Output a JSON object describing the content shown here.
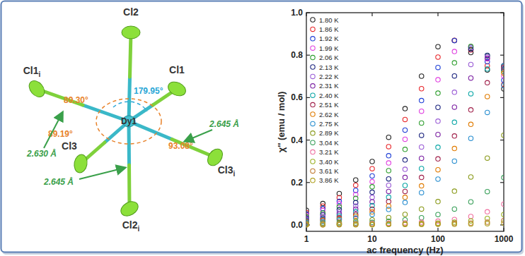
{
  "diagram": {
    "atoms": [
      {
        "label": "Cl2"
      },
      {
        "label": "Cl1"
      },
      {
        "label": "Cl1",
        "suffix": "i"
      },
      {
        "label": "Dy1"
      },
      {
        "label": "Cl3"
      },
      {
        "label": "Cl3",
        "suffix": "i"
      },
      {
        "label": "Cl2",
        "suffix": "i"
      }
    ],
    "angles": [
      "179.95°",
      "89.30°",
      "89.19°",
      "93.08°"
    ],
    "distances": [
      "2.630 Å",
      "2.645 Å",
      "2.645 Å"
    ]
  },
  "chart_data": {
    "type": "scatter",
    "xlabel": "ac frequency (Hz)",
    "ylabel": "χ'' (emu / mol)",
    "log": "x",
    "grid": false,
    "legend": "top-left",
    "marker": "circle",
    "xlim": [
      1,
      1000
    ],
    "xticks": [
      1,
      10,
      100,
      1000
    ],
    "ylim": [
      -0.03,
      1.0
    ],
    "yticks": [
      {
        "value": 0,
        "label": "0.0"
      },
      0.2,
      0.4,
      0.6,
      0.8,
      {
        "value": 1,
        "label": "1.0"
      }
    ],
    "x": [
      1,
      1.78,
      3.16,
      5.62,
      10,
      17.8,
      31.6,
      56.2,
      100,
      178,
      316,
      562,
      1000
    ],
    "series": [
      {
        "name": "1.80 K",
        "color": "#222222",
        "values": [
          0.069,
          0.101,
          0.148,
          0.212,
          0.299,
          0.413,
          0.548,
          0.701,
          0.84,
          0.869,
          0.812,
          0.73,
          0.641
        ]
      },
      {
        "name": "1.86 K",
        "color": "#e8262a",
        "values": [
          0.058,
          0.089,
          0.129,
          0.187,
          0.265,
          0.369,
          0.497,
          0.642,
          0.791,
          0.87,
          0.825,
          0.75,
          0.662
        ]
      },
      {
        "name": "1.92 K",
        "color": "#1f3fd6",
        "values": [
          0.051,
          0.077,
          0.111,
          0.163,
          0.231,
          0.326,
          0.447,
          0.586,
          0.742,
          0.869,
          0.837,
          0.769,
          0.682
        ]
      },
      {
        "name": "1.99 K",
        "color": "#e040e0",
        "values": [
          0.046,
          0.068,
          0.1,
          0.144,
          0.204,
          0.292,
          0.404,
          0.536,
          0.684,
          0.817,
          0.838,
          0.782,
          0.702
        ]
      },
      {
        "name": "2.06 K",
        "color": "#2e9e2e",
        "values": [
          0.039,
          0.056,
          0.086,
          0.125,
          0.18,
          0.256,
          0.356,
          0.48,
          0.621,
          0.764,
          0.841,
          0.797,
          0.724
        ]
      },
      {
        "name": "2.13 K",
        "color": "#1a237e",
        "values": [
          0.032,
          0.048,
          0.072,
          0.105,
          0.154,
          0.217,
          0.306,
          0.422,
          0.554,
          0.702,
          0.828,
          0.799,
          0.735
        ]
      },
      {
        "name": "2.22 K",
        "color": "#9a5cd6",
        "values": [
          0.028,
          0.041,
          0.061,
          0.09,
          0.13,
          0.187,
          0.262,
          0.367,
          0.489,
          0.625,
          0.756,
          0.793,
          0.744
        ]
      },
      {
        "name": "2.31 K",
        "color": "#7b1fa2",
        "values": [
          0.024,
          0.033,
          0.051,
          0.075,
          0.109,
          0.158,
          0.224,
          0.314,
          0.426,
          0.555,
          0.692,
          0.786,
          0.751
        ]
      },
      {
        "name": "2.40 K",
        "color": "#0aa6a6",
        "values": [
          0.021,
          0.028,
          0.042,
          0.062,
          0.091,
          0.131,
          0.186,
          0.266,
          0.366,
          0.484,
          0.618,
          0.735,
          0.749
        ]
      },
      {
        "name": "2.51 K",
        "color": "#a0204a",
        "values": [
          0.017,
          0.024,
          0.034,
          0.049,
          0.075,
          0.11,
          0.158,
          0.224,
          0.311,
          0.419,
          0.542,
          0.67,
          0.743
        ]
      },
      {
        "name": "2.62 K",
        "color": "#e07b00",
        "values": [
          0.014,
          0.021,
          0.028,
          0.041,
          0.061,
          0.089,
          0.13,
          0.184,
          0.26,
          0.36,
          0.474,
          0.605,
          0.715
        ]
      },
      {
        "name": "2.75 K",
        "color": "#2a8fd0",
        "values": [
          0.012,
          0.016,
          0.024,
          0.033,
          0.049,
          0.073,
          0.106,
          0.152,
          0.216,
          0.301,
          0.408,
          0.53,
          0.657
        ]
      },
      {
        "name": "2.89 K",
        "color": "#8a9a1a",
        "values": [
          0.007,
          0.009,
          0.012,
          0.017,
          0.024,
          0.035,
          0.05,
          0.075,
          0.11,
          0.159,
          0.226,
          0.315,
          0.423
        ]
      },
      {
        "name": "3.04 K",
        "color": "#3aa05a",
        "values": [
          0.004,
          0.006,
          0.007,
          0.009,
          0.012,
          0.017,
          0.024,
          0.034,
          0.049,
          0.075,
          0.109,
          0.157,
          0.223
        ]
      },
      {
        "name": "3.21 K",
        "color": "#f070a0",
        "values": [
          0.003,
          0.004,
          0.005,
          0.006,
          0.007,
          0.008,
          0.01,
          0.013,
          0.018,
          0.026,
          0.04,
          0.062,
          0.098
        ]
      },
      {
        "name": "3.40 K",
        "color": "#9ab020",
        "values": [
          0.002,
          0.002,
          0.003,
          0.003,
          0.004,
          0.005,
          0.006,
          0.007,
          0.009,
          0.013,
          0.019,
          0.031,
          0.049
        ]
      },
      {
        "name": "3.61 K",
        "color": "#c07a30",
        "values": [
          0.001,
          0.001,
          0.002,
          0.002,
          0.002,
          0.003,
          0.003,
          0.004,
          0.005,
          0.007,
          0.009,
          0.013,
          0.021
        ]
      },
      {
        "name": "3.86 K",
        "color": "#b0a020",
        "values": [
          0.001,
          0.001,
          0.001,
          0.001,
          0.001,
          0.002,
          0.002,
          0.002,
          0.003,
          0.003,
          0.004,
          0.006,
          0.009
        ]
      }
    ]
  }
}
